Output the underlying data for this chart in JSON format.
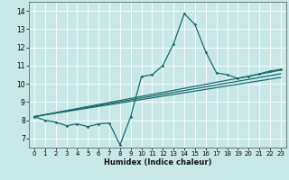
{
  "xlabel": "Humidex (Indice chaleur)",
  "xlim": [
    -0.5,
    23.5
  ],
  "ylim": [
    6.5,
    14.5
  ],
  "yticks": [
    7,
    8,
    9,
    10,
    11,
    12,
    13,
    14
  ],
  "xticks": [
    0,
    1,
    2,
    3,
    4,
    5,
    6,
    7,
    8,
    9,
    10,
    11,
    12,
    13,
    14,
    15,
    16,
    17,
    18,
    19,
    20,
    21,
    22,
    23
  ],
  "bg_color": "#c8e8e8",
  "grid_color": "#b0d0d0",
  "line_color": "#1a6b6b",
  "line1_x": [
    0,
    1,
    2,
    3,
    4,
    5,
    6,
    7,
    8,
    9,
    10,
    11,
    12,
    13,
    14,
    15,
    16,
    17,
    18,
    19,
    20,
    21,
    22,
    23
  ],
  "line1_y": [
    8.2,
    8.0,
    7.9,
    7.7,
    7.8,
    7.65,
    7.8,
    7.85,
    6.65,
    8.2,
    10.4,
    10.5,
    11.0,
    12.2,
    13.85,
    13.25,
    11.75,
    10.6,
    10.5,
    10.3,
    10.4,
    10.55,
    10.7,
    10.8
  ],
  "line2_x": [
    0,
    23
  ],
  "line2_y": [
    8.2,
    10.75
  ],
  "line3_x": [
    0,
    23
  ],
  "line3_y": [
    8.2,
    10.55
  ],
  "line4_x": [
    0,
    23
  ],
  "line4_y": [
    8.2,
    10.35
  ]
}
